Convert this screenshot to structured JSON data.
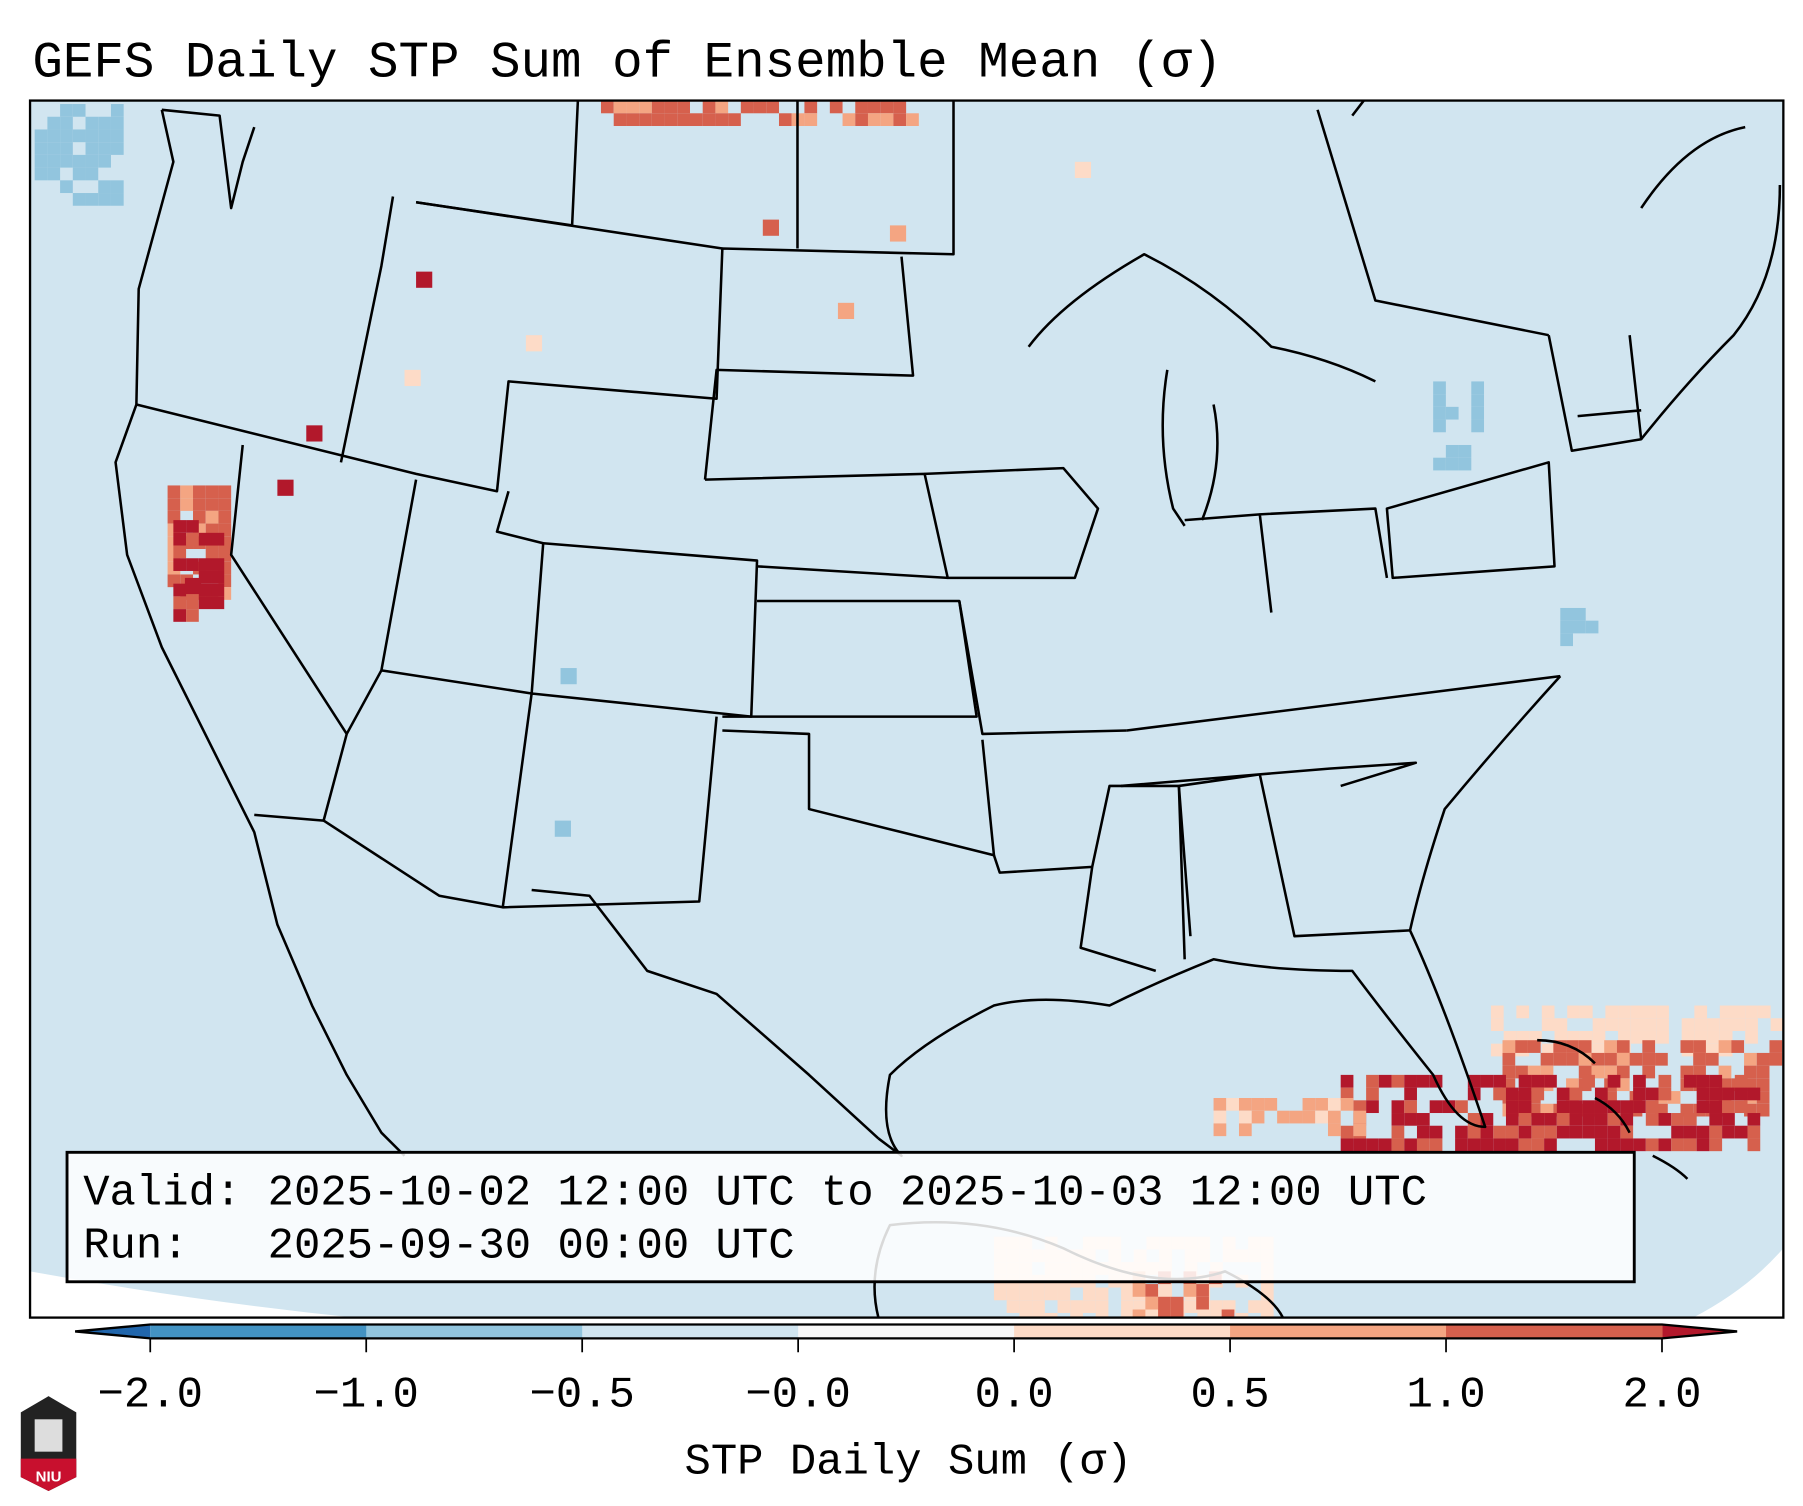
{
  "title": "GEFS Daily STP Sum of Ensemble Mean (σ)",
  "info_box": {
    "valid_line": "Valid: 2025-10-02 12:00 UTC to 2025-10-03 12:00 UTC",
    "run_line": "Run:   2025-09-30 00:00 UTC"
  },
  "colorbar": {
    "label": "STP Daily Sum (σ)",
    "ticks": [
      "−2.0",
      "−1.0",
      "−0.5",
      "−0.0",
      "0.0",
      "0.5",
      "1.0",
      "2.0"
    ],
    "colors": [
      "#4393c3",
      "#92c5de",
      "#d1e5f0",
      "#f7f7f7",
      "#fddbc7",
      "#f4a582",
      "#d6604d"
    ],
    "under_color": "#2166ac",
    "over_color": "#b2182b"
  },
  "logo": {
    "text": "NIU"
  }
}
